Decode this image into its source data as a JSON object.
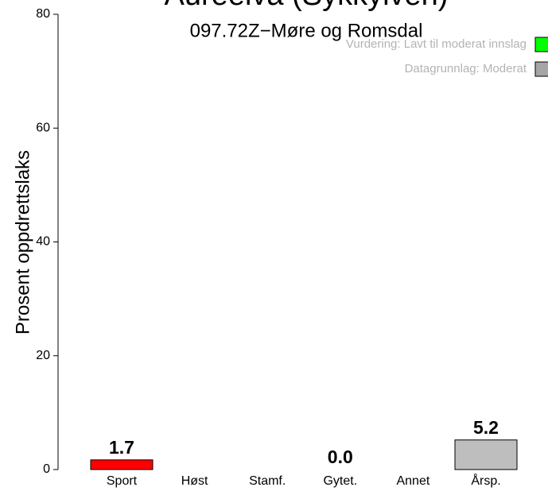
{
  "chart_data": {
    "type": "bar",
    "title": "Aureelva (Sykkylven)",
    "subtitle": "097.72Z−Møre og Romsdal",
    "ylabel": "Prosent oppdrettslaks",
    "categories": [
      "Sport",
      "Høst",
      "Stamf.",
      "Gytet.",
      "Annet",
      "Årsp."
    ],
    "values": [
      1.7,
      null,
      null,
      0,
      null,
      5.2
    ],
    "value_labels": [
      "1.7",
      null,
      null,
      "0.0",
      null,
      "5.2"
    ],
    "colors": [
      "#ff0000",
      null,
      null,
      "#bebebe",
      null,
      "#bebebe"
    ],
    "ylim": [
      0,
      80
    ],
    "yticks": [
      0,
      20,
      40,
      60,
      80
    ],
    "legend": [
      {
        "name": "Vurdering: Lavt til moderat innslag",
        "color": "#00ff00"
      },
      {
        "name": "Datagrunnlag: Moderat",
        "color": "#a6a6a6"
      }
    ],
    "legend_position": "upper right"
  }
}
